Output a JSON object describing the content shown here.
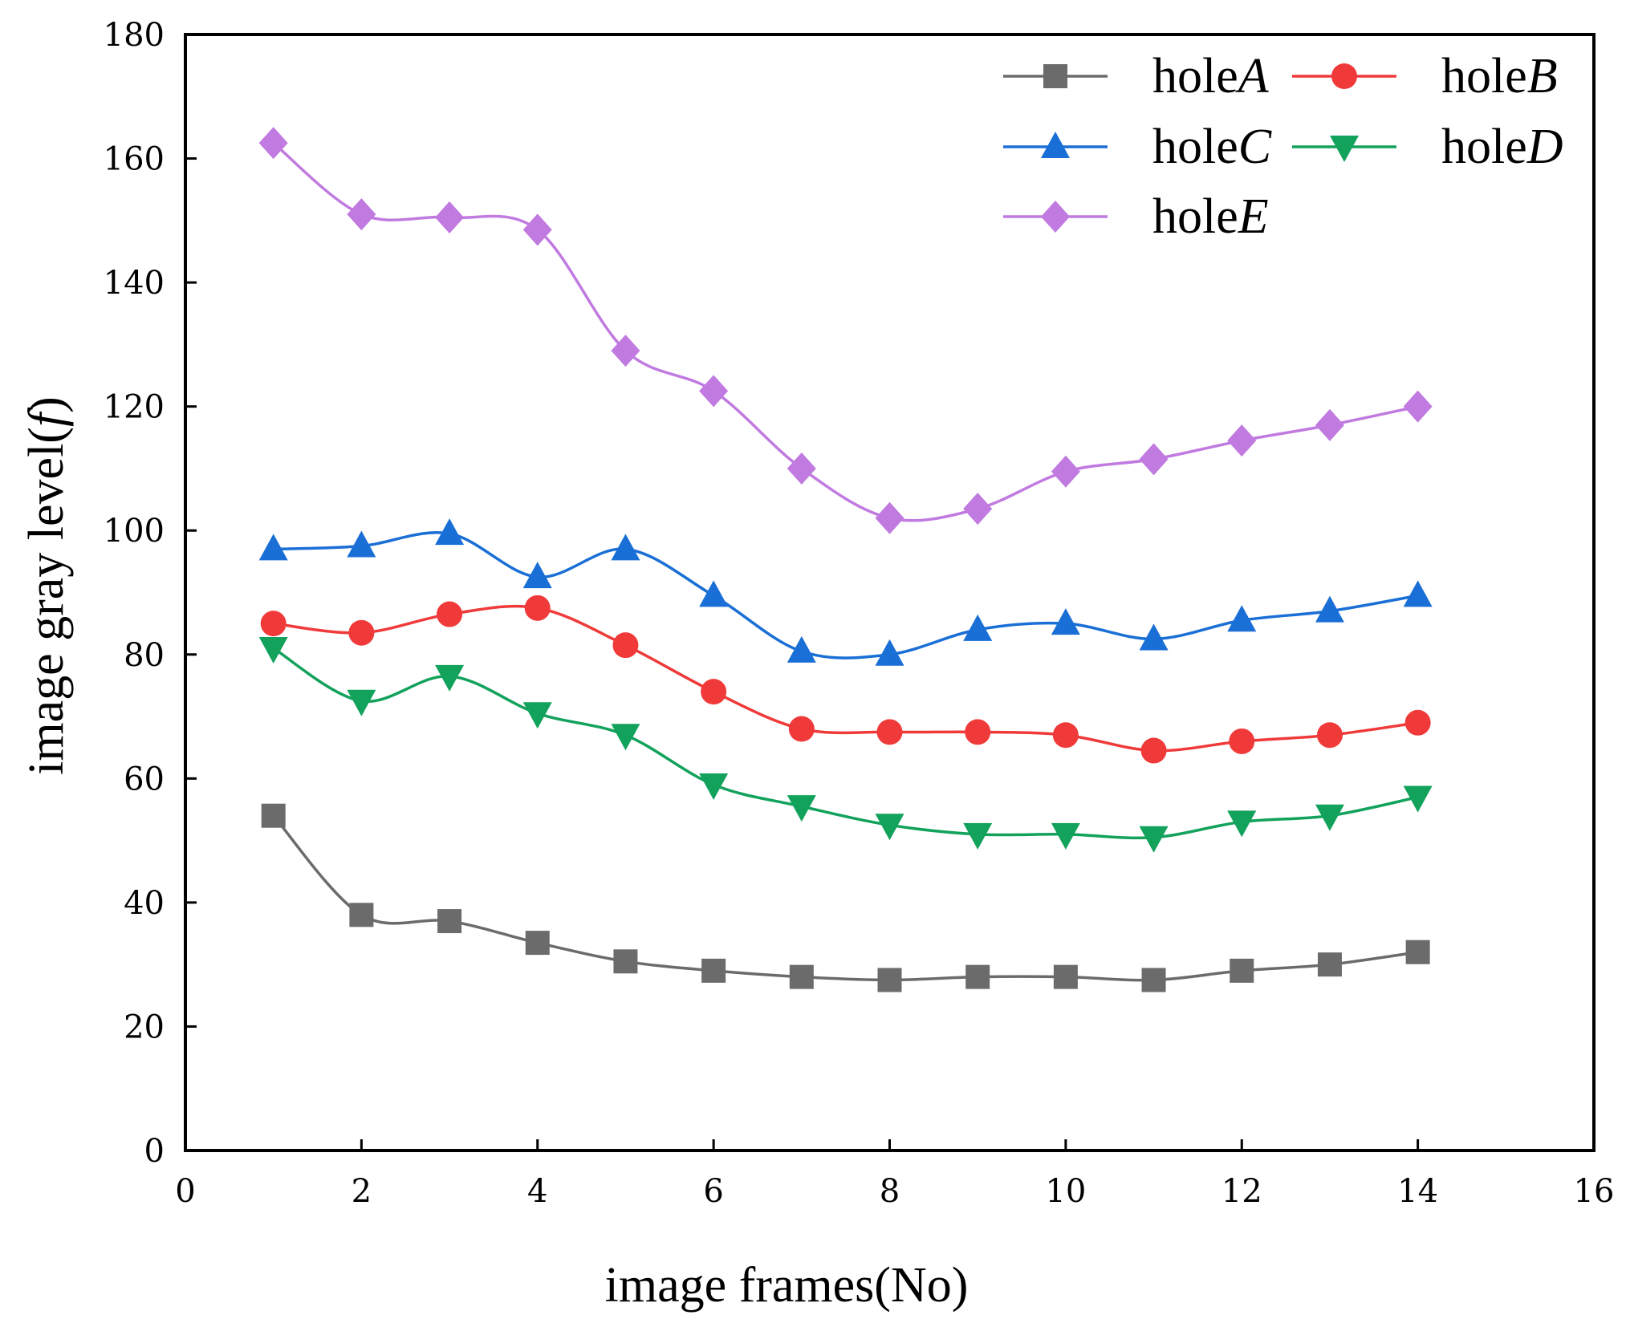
{
  "chart_data": {
    "type": "line",
    "title": "",
    "xlabel": "image frames(No)",
    "ylabel_prefix": "image gray level(",
    "ylabel_italic": "f",
    "ylabel_suffix": ")",
    "xlim": [
      0,
      16
    ],
    "ylim": [
      0,
      180
    ],
    "xticks": [
      0,
      2,
      4,
      6,
      8,
      10,
      12,
      14,
      16
    ],
    "yticks": [
      0,
      20,
      40,
      60,
      80,
      100,
      120,
      140,
      160,
      180
    ],
    "grid": false,
    "legend_position": "top-right",
    "x": [
      1,
      2,
      3,
      4,
      5,
      6,
      7,
      8,
      9,
      10,
      11,
      12,
      13,
      14
    ],
    "series": [
      {
        "name_prefix": "hole",
        "name_italic": "A",
        "color": "#6b6b6b",
        "marker": "square",
        "values": [
          54,
          38,
          37,
          33.5,
          30.5,
          29,
          28,
          27.5,
          28,
          28,
          27.5,
          29,
          30,
          32
        ]
      },
      {
        "name_prefix": "hole",
        "name_italic": "B",
        "color": "#f03a3a",
        "marker": "circle",
        "values": [
          85,
          83.5,
          86.5,
          87.5,
          81.5,
          74,
          68,
          67.5,
          67.5,
          67,
          64.5,
          66,
          67,
          69
        ]
      },
      {
        "name_prefix": "hole",
        "name_italic": "C",
        "color": "#1a6fd6",
        "marker": "triangle-up",
        "values": [
          97,
          97.5,
          99.5,
          92.5,
          97,
          89.5,
          80.5,
          80,
          84,
          85,
          82.5,
          85.5,
          87,
          89.5
        ]
      },
      {
        "name_prefix": "hole",
        "name_italic": "D",
        "color": "#12a25c",
        "marker": "triangle-down",
        "values": [
          81,
          72.5,
          76.5,
          70.5,
          67,
          59,
          55.5,
          52.5,
          51,
          51,
          50.5,
          53,
          54,
          57
        ]
      },
      {
        "name_prefix": "hole",
        "name_italic": "E",
        "color": "#c07ae0",
        "marker": "diamond",
        "values": [
          162.5,
          151,
          150.5,
          148.5,
          129,
          122.5,
          110,
          102,
          103.5,
          109.5,
          111.5,
          114.5,
          117,
          120
        ]
      }
    ]
  }
}
